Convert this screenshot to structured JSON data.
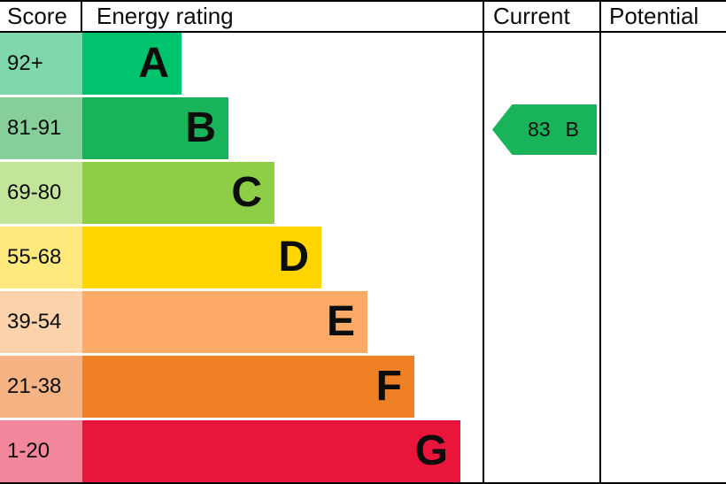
{
  "header": {
    "score": "Score",
    "energy_rating": "Energy rating",
    "current": "Current",
    "potential": "Potential"
  },
  "bands": [
    {
      "range": "92+",
      "letter": "A",
      "color": "#00c36d",
      "tint": "#7fd8ab"
    },
    {
      "range": "81-91",
      "letter": "B",
      "color": "#19b459",
      "tint": "#86cf9a"
    },
    {
      "range": "69-80",
      "letter": "C",
      "color": "#8dce46",
      "tint": "#c2e59a"
    },
    {
      "range": "55-68",
      "letter": "D",
      "color": "#ffd500",
      "tint": "#ffe97d"
    },
    {
      "range": "39-54",
      "letter": "E",
      "color": "#fcaa65",
      "tint": "#fcd2ab"
    },
    {
      "range": "21-38",
      "letter": "F",
      "color": "#ef8023",
      "tint": "#f5b384"
    },
    {
      "range": "1-20",
      "letter": "G",
      "color": "#e9153b",
      "tint": "#f2879c"
    }
  ],
  "current_marker": {
    "value": "83",
    "band": "B",
    "color": "#19b459",
    "row_index": 1
  },
  "colors": {
    "border": "#000000",
    "background": "#ffffff",
    "text": "#0b0c0c"
  },
  "chart_data": {
    "type": "bar",
    "title": "Energy rating",
    "categories": [
      "A",
      "B",
      "C",
      "D",
      "E",
      "F",
      "G"
    ],
    "score_ranges": [
      "92+",
      "81-91",
      "69-80",
      "55-68",
      "39-54",
      "21-38",
      "1-20"
    ],
    "band_colors": [
      "#00c36d",
      "#19b459",
      "#8dce46",
      "#ffd500",
      "#fcaa65",
      "#ef8023",
      "#e9153b"
    ],
    "columns": [
      "Score",
      "Energy rating",
      "Current",
      "Potential"
    ],
    "current": {
      "score": 83,
      "band": "B"
    },
    "legend_position": "none",
    "grid": false
  }
}
